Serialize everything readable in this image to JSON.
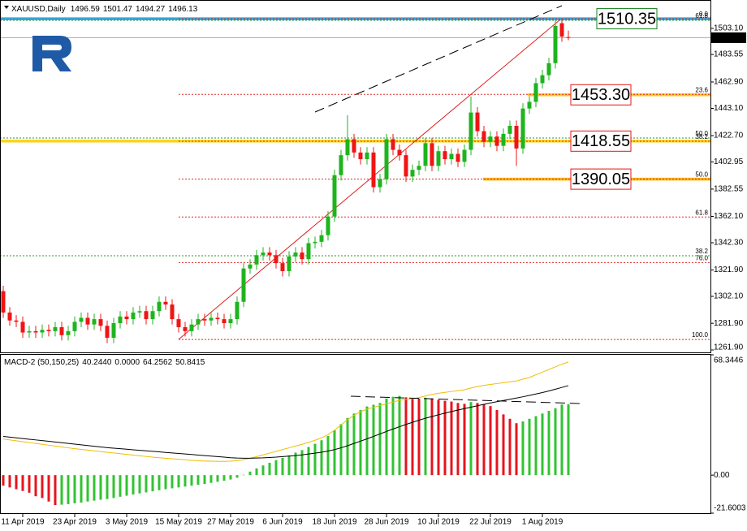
{
  "chart_data": [
    {
      "type": "candlestick",
      "title": "XAUUSD,Daily",
      "categories": [
        null,
        null,
        null,
        "11 Apr 2019",
        null,
        null,
        null,
        null,
        null,
        null,
        null,
        "23 Apr 2019",
        null,
        null,
        null,
        null,
        null,
        null,
        null,
        "3 May 2019",
        null,
        null,
        null,
        null,
        null,
        null,
        null,
        "15 May 2019",
        null,
        null,
        null,
        null,
        null,
        null,
        null,
        "27 May 2019",
        null,
        null,
        null,
        null,
        null,
        null,
        null,
        "6 Jun 2019",
        null,
        null,
        null,
        null,
        null,
        null,
        null,
        "18 Jun 2019",
        null,
        null,
        null,
        null,
        null,
        null,
        null,
        "28 Jun 2019",
        null,
        null,
        null,
        null,
        null,
        null,
        null,
        "10 Jul 2019",
        null,
        null,
        null,
        null,
        null,
        null,
        null,
        "22 Jul 2019",
        null,
        null,
        null,
        null,
        null,
        null,
        null,
        "1 Aug 2019",
        null,
        null,
        null,
        null
      ],
      "open": [
        1306,
        1290,
        1284,
        1283,
        1275,
        1276,
        1275,
        1277,
        1276,
        1279,
        1273,
        1276,
        1283,
        1286,
        1281,
        1285,
        1280,
        1271,
        1282,
        1287,
        1285,
        1290,
        1291,
        1285,
        1291,
        1298,
        1296,
        1285,
        1279,
        1276,
        1281,
        1285,
        1284,
        1286,
        1285,
        1282,
        1285,
        1298,
        1323,
        1326,
        1333,
        1335,
        1333,
        1327,
        1321,
        1332,
        1335,
        1330,
        1342,
        1343,
        1348,
        1362,
        1393,
        1408,
        1420,
        1410,
        1405,
        1410,
        1384,
        1390,
        1420,
        1412,
        1408,
        1392,
        1397,
        1400,
        1417,
        1400,
        1411,
        1405,
        1409,
        1403,
        1412,
        1440,
        1426,
        1418,
        1422,
        1415,
        1424,
        1430,
        1413,
        1443,
        1448,
        1462,
        1468,
        1477,
        1507,
        1496.59
      ],
      "high": [
        1310,
        1294,
        1288,
        1287,
        1280,
        1280,
        1281,
        1281,
        1283,
        1283,
        1280,
        1287,
        1290,
        1290,
        1289,
        1289,
        1284,
        1286,
        1291,
        1291,
        1294,
        1295,
        1295,
        1295,
        1302,
        1302,
        1300,
        1289,
        1283,
        1285,
        1289,
        1289,
        1290,
        1290,
        1289,
        1289,
        1302,
        1327,
        1330,
        1337,
        1339,
        1339,
        1337,
        1331,
        1336,
        1339,
        1339,
        1346,
        1347,
        1352,
        1366,
        1397,
        1412,
        1438,
        1424,
        1414,
        1414,
        1414,
        1394,
        1424,
        1424,
        1416,
        1412,
        1401,
        1404,
        1421,
        1421,
        1415,
        1415,
        1413,
        1413,
        1416,
        1452,
        1444,
        1430,
        1426,
        1426,
        1428,
        1434,
        1434,
        1447,
        1452,
        1466,
        1472,
        1481,
        1509,
        1510.35,
        1501.47
      ],
      "low": [
        1286,
        1280,
        1279,
        1271,
        1271,
        1271,
        1271,
        1272,
        1272,
        1269,
        1269,
        1272,
        1279,
        1277,
        1277,
        1276,
        1267,
        1267,
        1278,
        1281,
        1281,
        1286,
        1281,
        1281,
        1287,
        1292,
        1281,
        1275,
        1272,
        1272,
        1277,
        1280,
        1280,
        1281,
        1278,
        1278,
        1281,
        1294,
        1319,
        1322,
        1329,
        1329,
        1323,
        1317,
        1317,
        1328,
        1326,
        1326,
        1338,
        1339,
        1344,
        1358,
        1389,
        1404,
        1406,
        1401,
        1401,
        1380,
        1380,
        1386,
        1408,
        1404,
        1388,
        1388,
        1393,
        1396,
        1396,
        1396,
        1401,
        1401,
        1399,
        1399,
        1408,
        1422,
        1414,
        1414,
        1411,
        1411,
        1420,
        1400,
        1409,
        1439,
        1444,
        1458,
        1464,
        1473,
        1493,
        1494.27
      ],
      "close": [
        1290,
        1284,
        1283,
        1275,
        1276,
        1275,
        1277,
        1276,
        1279,
        1273,
        1276,
        1283,
        1286,
        1281,
        1285,
        1280,
        1271,
        1282,
        1287,
        1285,
        1290,
        1291,
        1285,
        1291,
        1298,
        1296,
        1285,
        1279,
        1276,
        1281,
        1285,
        1284,
        1286,
        1285,
        1282,
        1285,
        1298,
        1323,
        1326,
        1333,
        1335,
        1333,
        1327,
        1321,
        1332,
        1335,
        1330,
        1342,
        1343,
        1348,
        1362,
        1393,
        1408,
        1420,
        1410,
        1405,
        1410,
        1384,
        1390,
        1420,
        1412,
        1408,
        1392,
        1397,
        1400,
        1417,
        1400,
        1411,
        1405,
        1409,
        1403,
        1412,
        1440,
        1426,
        1418,
        1422,
        1415,
        1424,
        1430,
        1413,
        1443,
        1448,
        1462,
        1468,
        1477,
        1505,
        1497,
        1496.13
      ],
      "up_color": "#1eb41e",
      "down_color": "#f01414",
      "ylim": [
        1261.3,
        1524.4
      ],
      "yticks": [
        {
          "value": 1503.1,
          "label": "1503.10"
        },
        1483.55,
        {
          "value": 1462.9,
          "label": "1462.90"
        },
        {
          "value": 1443.1,
          "label": "1443.10"
        },
        {
          "value": 1422.7,
          "label": "1422.70"
        },
        1402.95,
        1382.55,
        {
          "value": 1362.1,
          "label": "1362.10"
        },
        {
          "value": 1342.3,
          "label": "1342.30"
        },
        {
          "value": 1321.9,
          "label": "1321.90"
        },
        {
          "value": 1302.1,
          "label": "1302.10"
        },
        {
          "value": 1281.9,
          "label": "1281.90"
        },
        {
          "value": 1261.9,
          "label": "1261.90"
        }
      ],
      "levels": [
        {
          "value": 1510.35,
          "color": "#14821e",
          "line_color": "#33a6de"
        },
        {
          "value": 1453.3,
          "label": "1453.30",
          "color": "#e61414",
          "line_color": "#ffc81e"
        },
        {
          "value": 1418.55,
          "color": "#e61414",
          "line_color": "#ffd21e"
        },
        {
          "value": 1390.05,
          "color": "#e61414",
          "line_color": "#ffb414"
        }
      ],
      "fibs": [
        {
          "color": "#e02828",
          "levels": [
            {
              "level": {
                "value": 0,
                "label": "0.0"
              },
              "price": 1510.35
            },
            {
              "level": 23.6,
              "price": 1453.57
            },
            {
              "level": 38.2,
              "price": 1418.44
            },
            {
              "level": {
                "value": 50,
                "label": "50.0"
              },
              "price": 1390.05
            },
            {
              "level": 61.8,
              "price": 1361.66
            },
            {
              "level": {
                "value": 76,
                "label": "76.0"
              },
              "price": 1327.49
            },
            {
              "level": {
                "value": 100,
                "label": "100.0"
              },
              "price": 1269.75
            }
          ]
        },
        {
          "color": "#2e962e",
          "levels": [
            {
              "level": 38.2,
              "price": 1332.56
            },
            {
              "level": {
                "value": 50,
                "label": "50.0"
              },
              "price": 1420.87
            },
            {
              "level": 61.8,
              "price": 1509.2
            }
          ]
        }
      ]
    },
    {
      "type": "macd",
      "title": "MACD-2 (50,150,25)",
      "header_values": [
        {
          "value": 40.244,
          "label": "40.2440"
        },
        {
          "value": 0,
          "label": "0.0000"
        },
        64.2562,
        50.8415
      ],
      "histogram": {
        "up_color": "#32c332",
        "down_color": "#e6141e",
        "values": [
          -6,
          -7,
          -8,
          -9,
          -10,
          -12,
          -13,
          -15,
          -17,
          -16.8,
          -16.5,
          -16,
          -15.6,
          -15,
          -14.5,
          -14,
          -13.6,
          -13,
          -12.3,
          -11.7,
          -11,
          -10.4,
          -9.8,
          -9.2,
          -8.6,
          -8,
          -7.5,
          -7,
          -6.5,
          -6,
          -5.5,
          -5,
          -4.4,
          -3.8,
          -3.2,
          -2.5,
          -1.5,
          0.2,
          2,
          3.8,
          5.5,
          7,
          8.5,
          9.8,
          11.2,
          12.8,
          14.2,
          16,
          17.8,
          19.8,
          22.2,
          25.5,
          29,
          32.5,
          35,
          37,
          39,
          40,
          41,
          43.5,
          44.5,
          45,
          44.2,
          43.8,
          43.5,
          44,
          43.2,
          42.8,
          42.2,
          41.8,
          41,
          40.5,
          41.5,
          41,
          40.2,
          39.2,
          37,
          34.5,
          32,
          29.5,
          30.5,
          32,
          33.5,
          35,
          36.5,
          38,
          40.1,
          40.244
        ]
      },
      "lines": [
        {
          "color": "#f0bd00",
          "values": [
            20.5,
            20,
            19.5,
            19,
            18.5,
            18,
            17.5,
            17,
            16.5,
            16,
            15.5,
            15,
            14.6,
            14.2,
            13.8,
            13.4,
            13,
            12.6,
            12.2,
            11.8,
            11.4,
            11,
            10.6,
            10.2,
            9.9,
            9.6,
            9.3,
            9,
            8.7,
            8.4,
            8.2,
            8,
            7.9,
            7.8,
            7.8,
            7.9,
            8.2,
            8.8,
            9.6,
            10.5,
            11.5,
            12.5,
            13.5,
            14.5,
            15.5,
            16.5,
            17.5,
            18.6,
            19.8,
            21.2,
            23,
            25.5,
            28.5,
            31.5,
            34,
            36,
            37.5,
            38.5,
            39.5,
            40.5,
            41.5,
            42.5,
            43,
            43.5,
            44,
            45,
            45.8,
            46.5,
            47,
            47.5,
            48,
            48.5,
            49.5,
            50.3,
            51,
            51.5,
            52,
            52.5,
            53,
            53.5,
            54.5,
            55.5,
            57,
            58.5,
            60,
            61.5,
            63,
            64.2562
          ]
        },
        {
          "color": "#000000",
          "values": [
            22,
            21.6,
            21.2,
            20.8,
            20.4,
            20,
            19.6,
            19.2,
            18.8,
            18.4,
            18,
            17.6,
            17.2,
            16.8,
            16.4,
            16,
            15.6,
            15.3,
            15,
            14.7,
            14.4,
            14.1,
            13.8,
            13.5,
            13.2,
            12.9,
            12.6,
            12.3,
            12,
            11.7,
            11.4,
            11.1,
            10.8,
            10.5,
            10.2,
            9.9,
            9.7,
            9.6,
            9.6,
            9.7,
            9.8,
            10,
            10.2,
            10.5,
            10.8,
            11.1,
            11.5,
            12,
            12.5,
            13,
            13.7,
            14.5,
            15.5,
            16.7,
            18,
            19.3,
            20.6,
            22,
            23.4,
            24.8,
            26.2,
            27.5,
            28.8,
            30,
            31.2,
            32.3,
            33.3,
            34.3,
            35.2,
            36.1,
            37,
            37.8,
            38.6,
            39.4,
            40.2,
            41,
            41.7,
            42.4,
            43.1,
            43.8,
            44.5,
            45.3,
            46.1,
            46.9,
            47.8,
            48.8,
            49.8,
            50.8415
          ]
        }
      ],
      "ylim": [
        -21.6003,
        68.3446
      ],
      "yticks": [
        68.3446,
        {
          "value": 0,
          "label": "0.00"
        },
        -21.6003
      ]
    }
  ]
}
